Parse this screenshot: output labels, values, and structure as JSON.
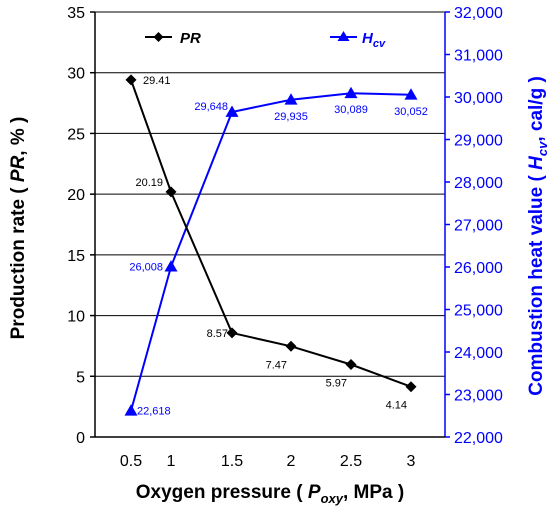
{
  "chart_data": {
    "type": "line",
    "x": [
      0.5,
      1,
      1.5,
      2,
      2.5,
      3
    ],
    "x_tick_labels": [
      "0.5",
      "1",
      "1.5",
      "2",
      "2.5",
      "3"
    ],
    "xlabel": {
      "prefix": "Oxygen pressure ( ",
      "var": "P",
      "sub": "oxy",
      "suffix": ", MPa )"
    },
    "ylabel_left": {
      "prefix": "Production rate ( ",
      "var": "PR",
      "suffix": ", % )"
    },
    "ylabel_right": {
      "prefix": "Combustion heat value ( ",
      "var": "H",
      "sub": "cv",
      "suffix": ", cal/g )"
    },
    "ylim_left": [
      0,
      35
    ],
    "yticks_left": [
      "0",
      "5",
      "10",
      "15",
      "20",
      "25",
      "30",
      "35"
    ],
    "ylim_right": [
      22000,
      32000
    ],
    "yticks_right": [
      "22,000",
      "23,000",
      "24,000",
      "25,000",
      "26,000",
      "27,000",
      "28,000",
      "29,000",
      "30,000",
      "31,000",
      "32,000"
    ],
    "grid": "horizontal",
    "legend_position": "top",
    "series": [
      {
        "name": "PR",
        "legend_var": "PR",
        "axis": "left",
        "marker": "diamond",
        "color": "#000000",
        "values": [
          29.41,
          20.19,
          8.57,
          7.47,
          5.97,
          4.14
        ],
        "labels": [
          "29.41",
          "20.19",
          "8.57",
          "7.47",
          "5.97",
          "4.14"
        ]
      },
      {
        "name": "Hcv",
        "legend_var": "H",
        "legend_sub": "cv",
        "axis": "right",
        "marker": "triangle",
        "color": "#0000ff",
        "values": [
          22618,
          26008,
          29648,
          29935,
          30089,
          30052
        ],
        "labels": [
          "22,618",
          "26,008",
          "29,648",
          "29,935",
          "30,089",
          "30,052"
        ]
      }
    ]
  }
}
